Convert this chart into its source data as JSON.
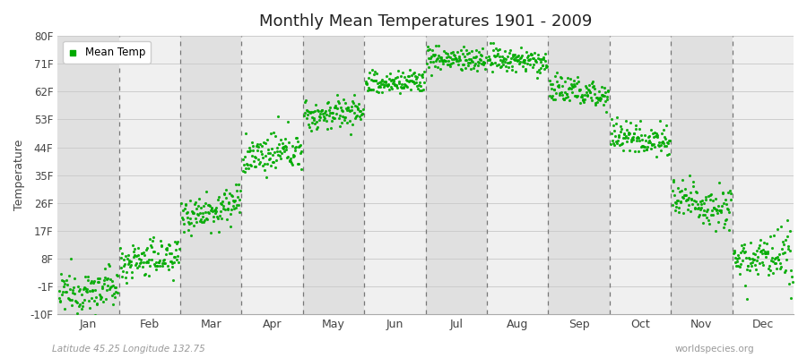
{
  "title": "Monthly Mean Temperatures 1901 - 2009",
  "ylabel": "Temperature",
  "bottom_left": "Latitude 45.25 Longitude 132.75",
  "bottom_right": "worldspecies.org",
  "ytick_labels": [
    "-10F",
    "-1F",
    "8F",
    "17F",
    "26F",
    "35F",
    "44F",
    "53F",
    "62F",
    "71F",
    "80F"
  ],
  "ytick_values": [
    -10,
    -1,
    8,
    17,
    26,
    35,
    44,
    53,
    62,
    71,
    80
  ],
  "months": [
    "Jan",
    "Feb",
    "Mar",
    "Apr",
    "May",
    "Jun",
    "Jul",
    "Aug",
    "Sep",
    "Oct",
    "Nov",
    "Dec"
  ],
  "dot_color": "#00aa00",
  "background_color": "#ffffff",
  "plot_bg_color": "#f0f0f0",
  "alt_band_color": "#e0e0e0",
  "legend_label": "Mean Temp",
  "monthly_mean_temps_F": {
    "Jan": -2.5,
    "Feb": 8.0,
    "Mar": 24.0,
    "Apr": 42.0,
    "May": 55.0,
    "Jun": 65.0,
    "Jul": 72.5,
    "Aug": 72.0,
    "Sep": 62.0,
    "Oct": 47.0,
    "Nov": 26.0,
    "Dec": 8.0
  },
  "monthly_trend_F": {
    "Jan": 3.0,
    "Feb": 2.5,
    "Mar": 4.0,
    "Apr": 3.0,
    "May": 2.0,
    "Jun": 1.5,
    "Jul": -1.0,
    "Aug": -1.0,
    "Sep": -2.0,
    "Oct": -1.5,
    "Nov": -2.0,
    "Dec": -1.5
  },
  "monthly_noise_F": {
    "Jan": 3.5,
    "Feb": 3.0,
    "Mar": 3.0,
    "Apr": 3.0,
    "May": 2.5,
    "Jun": 2.0,
    "Jul": 2.0,
    "Aug": 2.0,
    "Sep": 2.5,
    "Oct": 2.5,
    "Nov": 3.5,
    "Dec": 4.0
  },
  "n_years": 109,
  "ylim": [
    -10,
    80
  ],
  "xlim": [
    0.0,
    12.0
  ]
}
